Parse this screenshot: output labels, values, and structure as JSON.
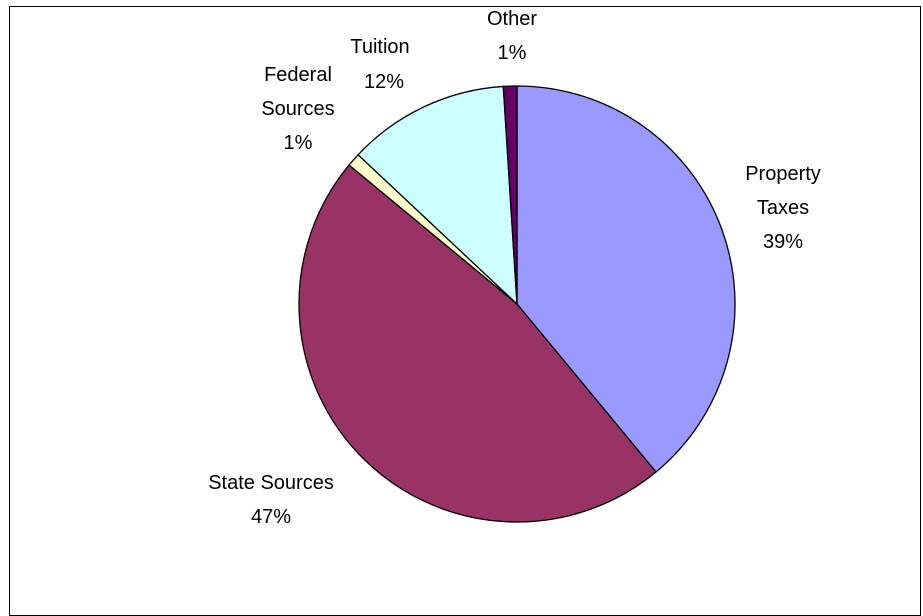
{
  "chart_data": {
    "type": "pie",
    "title": "",
    "categories": [
      "Property Taxes",
      "State Sources",
      "Federal Sources",
      "Tuition",
      "Other"
    ],
    "values": [
      39,
      47,
      1,
      12,
      1
    ],
    "label_percents": [
      "39%",
      "47%",
      "1%",
      "12%",
      "1%"
    ],
    "colors": [
      "#9999ff",
      "#993366",
      "#ffffcc",
      "#ccffff",
      "#660066"
    ],
    "start_angle_deg": 0,
    "direction": "clockwise",
    "legend": "none",
    "data_labels": "category and percent"
  }
}
